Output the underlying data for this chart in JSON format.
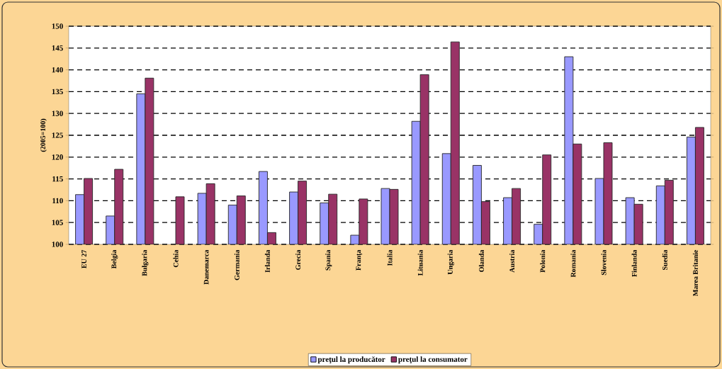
{
  "chart_data": {
    "type": "bar",
    "ylabel": "(2005=100)",
    "categories": [
      "EU 27",
      "Belgia",
      "Bulgaria",
      "Cehia",
      "Danemarca",
      "Germania",
      "Irlanda",
      "Grecia",
      "Spania",
      "Franţa",
      "Italia",
      "Lituania",
      "Ungaria",
      "Olanda",
      "Austria",
      "Polonia",
      "Romania",
      "Slovenia",
      "Finlanda",
      "Suedia",
      "Marea Britanie"
    ],
    "series": [
      {
        "name": "preţul la producător",
        "color": "#9999ff",
        "values": [
          111.4,
          106.5,
          134.5,
          null,
          111.7,
          109.0,
          116.7,
          112.0,
          109.5,
          102.1,
          112.8,
          128.2,
          120.8,
          118.1,
          110.7,
          104.6,
          143.0,
          115.1,
          110.7,
          113.4,
          124.6
        ]
      },
      {
        "name": "preţul la consumator",
        "color": "#993366",
        "values": [
          115.1,
          117.2,
          138.1,
          110.9,
          113.9,
          111.1,
          102.7,
          114.5,
          111.5,
          110.4,
          112.6,
          138.9,
          146.4,
          109.8,
          112.8,
          120.5,
          123.0,
          123.3,
          109.2,
          114.7,
          126.8
        ]
      }
    ],
    "ylim": [
      100,
      150
    ],
    "yticks": [
      100,
      105,
      110,
      115,
      120,
      125,
      130,
      135,
      140,
      145,
      150
    ],
    "grid": "y",
    "legend": "bottom"
  }
}
